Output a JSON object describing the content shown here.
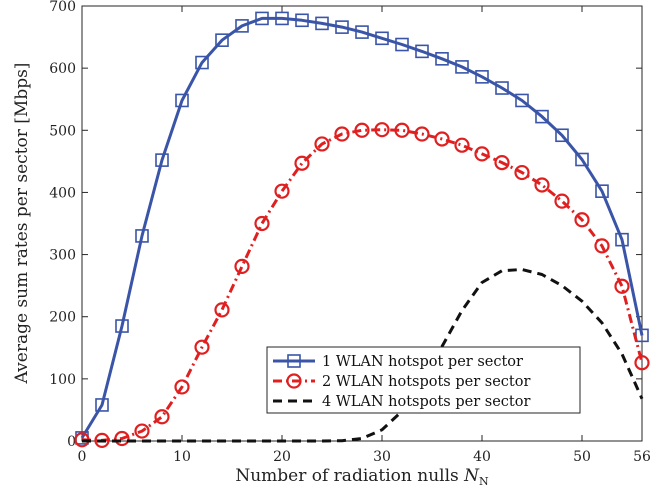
{
  "chart_data": {
    "type": "line",
    "title": "",
    "xlabel": "Number of radiation nulls ",
    "xlabel_symbol": "N",
    "xlabel_subscript": "N",
    "ylabel": "Average sum rates per sector  [Mbps]",
    "xlim": [
      0,
      56
    ],
    "ylim": [
      0,
      700
    ],
    "xticks": [
      0,
      10,
      20,
      30,
      40,
      50,
      56
    ],
    "yticks": [
      0,
      100,
      200,
      300,
      400,
      500,
      600,
      700
    ],
    "grid": false,
    "legend_position": "bottom-right",
    "series": [
      {
        "name": "1 WLAN hotspot per sector",
        "color": "#3a55a8",
        "style": "solid",
        "marker": "square",
        "x": [
          0,
          2,
          4,
          6,
          8,
          10,
          12,
          14,
          16,
          18,
          20,
          22,
          24,
          26,
          28,
          30,
          32,
          34,
          36,
          38,
          40,
          42,
          44,
          46,
          48,
          50,
          52,
          54,
          56
        ],
        "y": [
          5,
          58,
          185,
          330,
          452,
          548,
          609,
          645,
          668,
          680,
          680,
          677,
          672,
          666,
          658,
          648,
          638,
          627,
          615,
          602,
          586,
          568,
          548,
          522,
          492,
          453,
          402,
          324,
          170
        ]
      },
      {
        "name": "2 WLAN hotspots per sector",
        "color": "#e02020",
        "style": "dashdot",
        "marker": "circle",
        "x": [
          0,
          2,
          4,
          6,
          8,
          10,
          12,
          14,
          16,
          18,
          20,
          22,
          24,
          26,
          28,
          30,
          32,
          34,
          36,
          38,
          40,
          42,
          44,
          46,
          48,
          50,
          52,
          54,
          56
        ],
        "y": [
          2,
          1,
          4,
          16,
          39,
          87,
          151,
          211,
          281,
          350,
          402,
          447,
          478,
          494,
          500,
          501,
          500,
          494,
          486,
          476,
          462,
          448,
          432,
          412,
          386,
          356,
          314,
          249,
          126
        ]
      },
      {
        "name": "4 WLAN hotspots per sector",
        "color": "#111111",
        "style": "dashed",
        "marker": "none",
        "x": [
          0,
          4,
          8,
          12,
          16,
          20,
          24,
          26,
          28,
          30,
          32,
          34,
          36,
          38,
          40,
          42,
          44,
          46,
          48,
          50,
          52,
          54,
          56
        ],
        "y": [
          0,
          0,
          0,
          0,
          0,
          0,
          0,
          0.5,
          4,
          18,
          48,
          95,
          152,
          210,
          255,
          274,
          276,
          268,
          250,
          225,
          190,
          140,
          68
        ]
      }
    ]
  }
}
